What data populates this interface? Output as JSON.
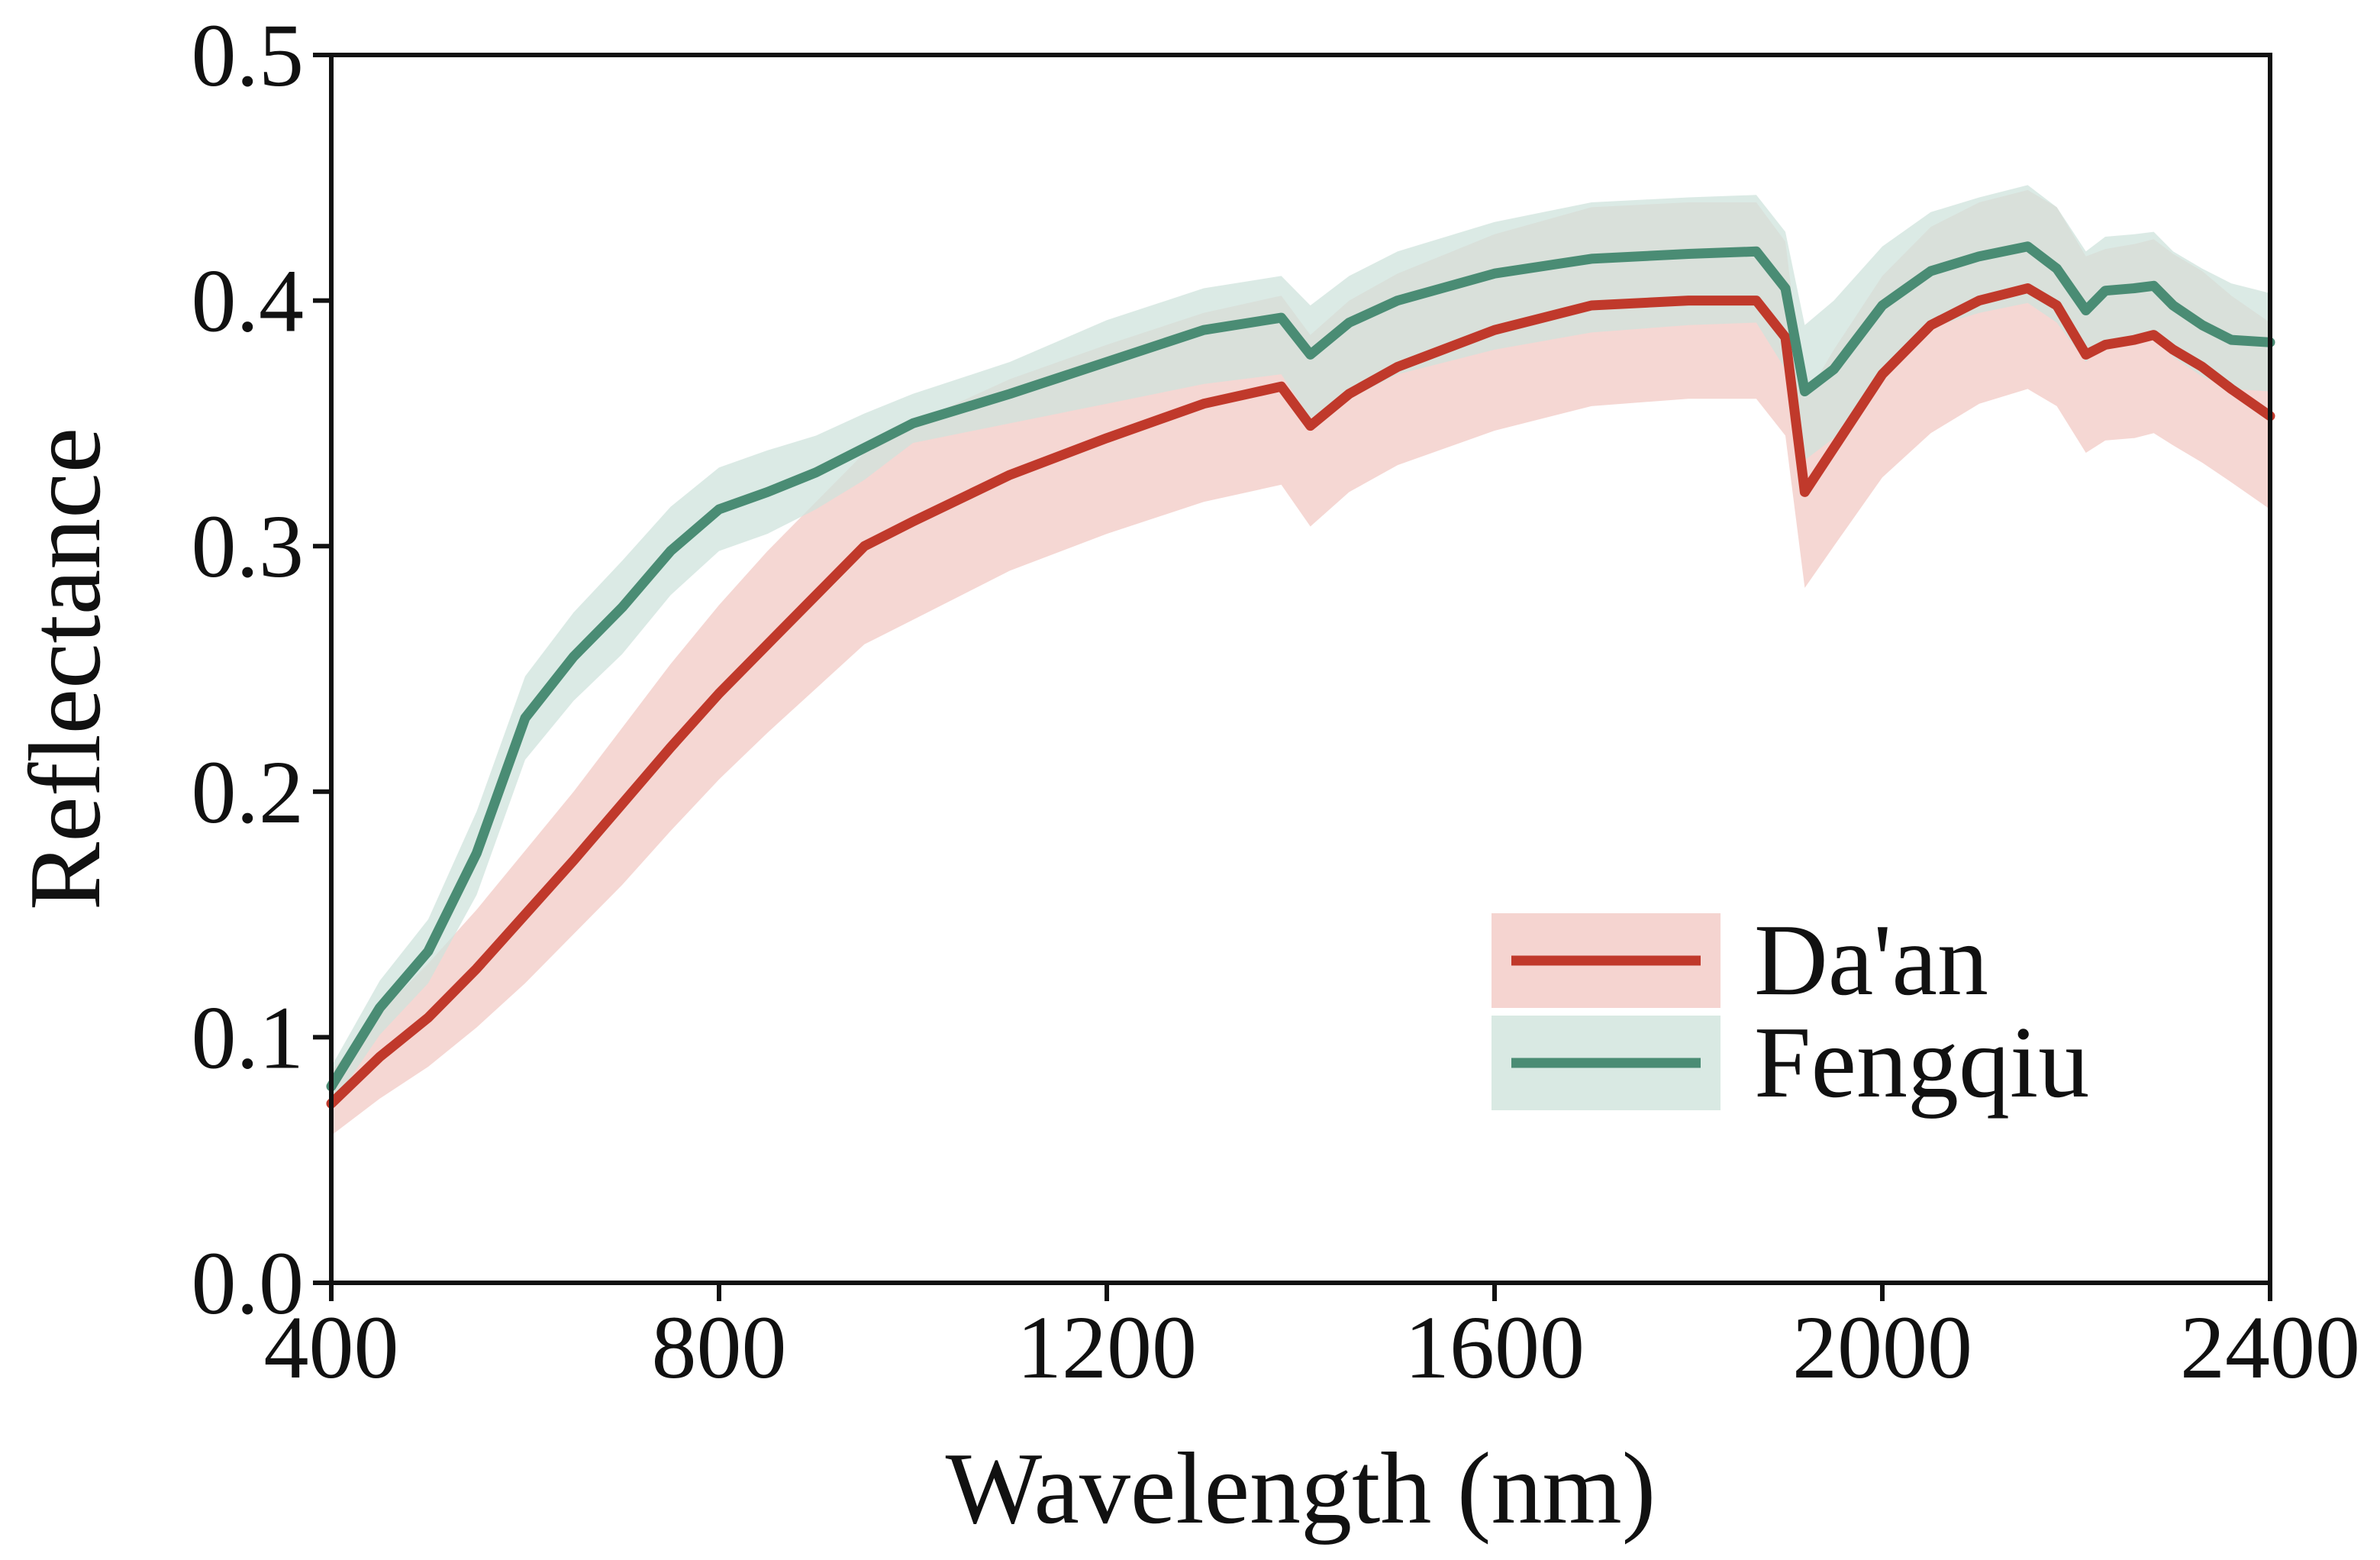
{
  "chart_data": {
    "type": "line",
    "title": "",
    "xlabel": "Wavelength (nm)",
    "ylabel": "Reflectance",
    "xlim": [
      400,
      2400
    ],
    "ylim": [
      0.0,
      0.5
    ],
    "xticks": [
      400,
      800,
      1200,
      1600,
      2000,
      2400
    ],
    "xtick_labels": [
      "400",
      "800",
      "1200",
      "1600",
      "2000",
      "2400"
    ],
    "yticks": [
      0.0,
      0.1,
      0.2,
      0.3,
      0.4,
      0.5
    ],
    "ytick_labels": [
      "0.0",
      "0.1",
      "0.2",
      "0.3",
      "0.4",
      "0.5"
    ],
    "grid": false,
    "legend_position": "bottom-right",
    "x": [
      400,
      450,
      500,
      550,
      600,
      650,
      700,
      750,
      800,
      850,
      900,
      950,
      1000,
      1100,
      1200,
      1300,
      1380,
      1410,
      1450,
      1500,
      1600,
      1700,
      1800,
      1870,
      1900,
      1920,
      1950,
      2000,
      2050,
      2100,
      2150,
      2180,
      2210,
      2230,
      2260,
      2280,
      2300,
      2330,
      2360,
      2400
    ],
    "series": [
      {
        "name": "Da'an",
        "color": "#c0392b",
        "band_color": "#f2c9c4",
        "mean": [
          0.073,
          0.092,
          0.108,
          0.128,
          0.15,
          0.172,
          0.195,
          0.218,
          0.24,
          0.26,
          0.28,
          0.3,
          0.31,
          0.329,
          0.344,
          0.358,
          0.365,
          0.349,
          0.362,
          0.373,
          0.388,
          0.398,
          0.4,
          0.4,
          0.385,
          0.322,
          0.34,
          0.37,
          0.39,
          0.4,
          0.405,
          0.398,
          0.378,
          0.382,
          0.384,
          0.386,
          0.38,
          0.373,
          0.364,
          0.353
        ],
        "lower": [
          0.06,
          0.075,
          0.088,
          0.104,
          0.122,
          0.142,
          0.162,
          0.184,
          0.205,
          0.224,
          0.242,
          0.26,
          0.27,
          0.29,
          0.305,
          0.318,
          0.325,
          0.308,
          0.322,
          0.333,
          0.347,
          0.357,
          0.36,
          0.36,
          0.345,
          0.283,
          0.3,
          0.328,
          0.346,
          0.358,
          0.364,
          0.357,
          0.338,
          0.343,
          0.344,
          0.346,
          0.341,
          0.334,
          0.326,
          0.315
        ],
        "upper": [
          0.086,
          0.11,
          0.13,
          0.152,
          0.176,
          0.2,
          0.226,
          0.252,
          0.276,
          0.298,
          0.318,
          0.338,
          0.35,
          0.368,
          0.382,
          0.395,
          0.402,
          0.386,
          0.4,
          0.411,
          0.427,
          0.438,
          0.44,
          0.44,
          0.424,
          0.36,
          0.38,
          0.41,
          0.43,
          0.44,
          0.445,
          0.438,
          0.418,
          0.421,
          0.423,
          0.425,
          0.419,
          0.412,
          0.402,
          0.391
        ]
      },
      {
        "name": "Fengqiu",
        "color": "#4a8c74",
        "band_color": "#cfe3dc",
        "mean": [
          0.08,
          0.112,
          0.135,
          0.175,
          0.23,
          0.255,
          0.275,
          0.298,
          0.315,
          0.322,
          0.33,
          0.34,
          0.35,
          0.362,
          0.375,
          0.388,
          0.393,
          0.378,
          0.391,
          0.4,
          0.411,
          0.417,
          0.419,
          0.42,
          0.405,
          0.363,
          0.372,
          0.398,
          0.412,
          0.418,
          0.422,
          0.413,
          0.396,
          0.404,
          0.405,
          0.406,
          0.398,
          0.39,
          0.384,
          0.383
        ],
        "lower": [
          0.072,
          0.101,
          0.122,
          0.158,
          0.213,
          0.237,
          0.256,
          0.28,
          0.298,
          0.305,
          0.315,
          0.327,
          0.342,
          0.35,
          0.358,
          0.366,
          0.37,
          0.352,
          0.36,
          0.37,
          0.38,
          0.387,
          0.39,
          0.391,
          0.372,
          0.335,
          0.344,
          0.373,
          0.389,
          0.395,
          0.399,
          0.391,
          0.375,
          0.383,
          0.384,
          0.385,
          0.377,
          0.369,
          0.364,
          0.363
        ],
        "upper": [
          0.088,
          0.123,
          0.148,
          0.192,
          0.247,
          0.273,
          0.294,
          0.316,
          0.332,
          0.339,
          0.345,
          0.354,
          0.362,
          0.375,
          0.392,
          0.405,
          0.41,
          0.398,
          0.41,
          0.42,
          0.432,
          0.44,
          0.442,
          0.443,
          0.428,
          0.39,
          0.4,
          0.422,
          0.436,
          0.442,
          0.447,
          0.438,
          0.42,
          0.426,
          0.427,
          0.428,
          0.42,
          0.413,
          0.407,
          0.403
        ]
      }
    ]
  }
}
